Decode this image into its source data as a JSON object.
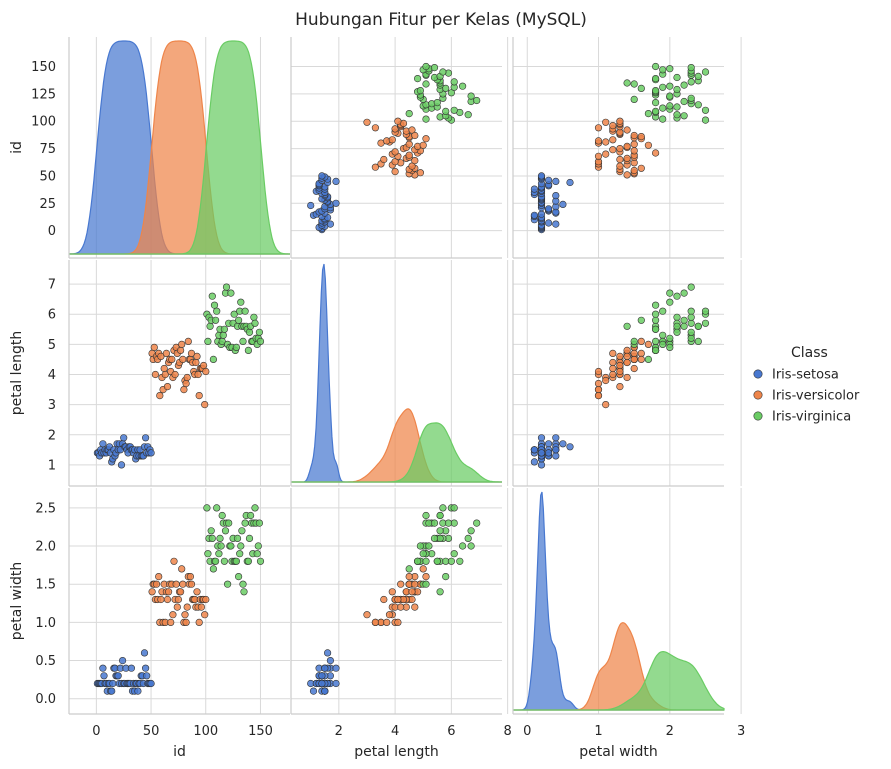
{
  "chart_data": {
    "type": "scatter",
    "title": "Hubungan Fitur per Kelas (MySQL)",
    "variables": [
      "id",
      "petal length",
      "petal width"
    ],
    "ticks": {
      "id": [
        0,
        50,
        100,
        150
      ],
      "id_y": [
        0,
        25,
        50,
        75,
        100,
        125,
        150
      ],
      "petal length_x": [
        2,
        4,
        6,
        8
      ],
      "petal length_y": [
        1,
        2,
        3,
        4,
        5,
        6,
        7
      ],
      "petal width_x": [
        0,
        1,
        2,
        3
      ],
      "petal width_y": [
        0.0,
        0.5,
        1.0,
        1.5,
        2.0,
        2.5
      ]
    },
    "ranges": {
      "id": [
        -25,
        177
      ],
      "petal length": [
        0.3,
        7.8
      ],
      "petal width": [
        -0.2,
        2.76
      ]
    },
    "grid": true,
    "legend": {
      "title": "Class",
      "placement": "right",
      "entries": [
        "Iris-setosa",
        "Iris-versicolor",
        "Iris-virginica"
      ]
    },
    "colors": {
      "Iris-setosa": "#4878d0",
      "Iris-versicolor": "#ee854a",
      "Iris-virginica": "#6acc64"
    },
    "series": [
      {
        "name": "Iris-setosa",
        "id": [
          1,
          2,
          3,
          4,
          5,
          6,
          7,
          8,
          9,
          10,
          11,
          12,
          13,
          14,
          15,
          16,
          17,
          18,
          19,
          20,
          21,
          22,
          23,
          24,
          25,
          26,
          27,
          28,
          29,
          30,
          31,
          32,
          33,
          34,
          35,
          36,
          37,
          38,
          39,
          40,
          41,
          42,
          43,
          44,
          45,
          46,
          47,
          48,
          49,
          50
        ],
        "petal length": [
          1.4,
          1.4,
          1.3,
          1.5,
          1.4,
          1.7,
          1.4,
          1.5,
          1.4,
          1.5,
          1.5,
          1.6,
          1.4,
          1.1,
          1.2,
          1.5,
          1.3,
          1.4,
          1.7,
          1.5,
          1.7,
          1.5,
          1.0,
          1.7,
          1.9,
          1.6,
          1.6,
          1.5,
          1.4,
          1.6,
          1.6,
          1.5,
          1.5,
          1.4,
          1.5,
          1.2,
          1.3,
          1.5,
          1.3,
          1.5,
          1.3,
          1.3,
          1.3,
          1.6,
          1.9,
          1.4,
          1.6,
          1.4,
          1.5,
          1.4
        ],
        "petal width": [
          0.2,
          0.2,
          0.2,
          0.2,
          0.2,
          0.4,
          0.3,
          0.2,
          0.2,
          0.1,
          0.2,
          0.2,
          0.1,
          0.1,
          0.2,
          0.4,
          0.4,
          0.3,
          0.3,
          0.3,
          0.2,
          0.4,
          0.2,
          0.5,
          0.2,
          0.2,
          0.4,
          0.2,
          0.2,
          0.2,
          0.2,
          0.4,
          0.1,
          0.2,
          0.1,
          0.2,
          0.2,
          0.1,
          0.2,
          0.2,
          0.3,
          0.3,
          0.2,
          0.6,
          0.4,
          0.3,
          0.2,
          0.2,
          0.2,
          0.2
        ]
      },
      {
        "name": "Iris-versicolor",
        "id": [
          51,
          52,
          53,
          54,
          55,
          56,
          57,
          58,
          59,
          60,
          61,
          62,
          63,
          64,
          65,
          66,
          67,
          68,
          69,
          70,
          71,
          72,
          73,
          74,
          75,
          76,
          77,
          78,
          79,
          80,
          81,
          82,
          83,
          84,
          85,
          86,
          87,
          88,
          89,
          90,
          91,
          92,
          93,
          94,
          95,
          96,
          97,
          98,
          99,
          100
        ],
        "petal length": [
          4.7,
          4.5,
          4.9,
          4.0,
          4.6,
          4.5,
          4.7,
          3.3,
          4.6,
          3.9,
          3.5,
          4.2,
          4.0,
          4.7,
          3.6,
          4.4,
          4.5,
          4.1,
          4.5,
          3.9,
          4.8,
          4.0,
          4.9,
          4.7,
          4.3,
          4.4,
          4.8,
          5.0,
          4.5,
          3.5,
          3.8,
          3.7,
          3.9,
          5.1,
          4.5,
          4.5,
          4.7,
          4.4,
          4.1,
          4.0,
          4.4,
          4.6,
          4.0,
          3.3,
          4.2,
          4.2,
          4.2,
          4.3,
          3.0,
          4.1
        ],
        "petal width": [
          1.4,
          1.5,
          1.5,
          1.3,
          1.5,
          1.3,
          1.6,
          1.0,
          1.3,
          1.4,
          1.0,
          1.5,
          1.0,
          1.4,
          1.3,
          1.4,
          1.5,
          1.0,
          1.5,
          1.1,
          1.8,
          1.3,
          1.5,
          1.2,
          1.3,
          1.4,
          1.4,
          1.7,
          1.5,
          1.0,
          1.1,
          1.0,
          1.2,
          1.6,
          1.5,
          1.6,
          1.5,
          1.3,
          1.3,
          1.3,
          1.2,
          1.4,
          1.2,
          1.0,
          1.3,
          1.2,
          1.3,
          1.3,
          1.1,
          1.3
        ]
      },
      {
        "name": "Iris-virginica",
        "id": [
          101,
          102,
          103,
          104,
          105,
          106,
          107,
          108,
          109,
          110,
          111,
          112,
          113,
          114,
          115,
          116,
          117,
          118,
          119,
          120,
          121,
          122,
          123,
          124,
          125,
          126,
          127,
          128,
          129,
          130,
          131,
          132,
          133,
          134,
          135,
          136,
          137,
          138,
          139,
          140,
          141,
          142,
          143,
          144,
          145,
          146,
          147,
          148,
          149,
          150
        ],
        "petal length": [
          6.0,
          5.1,
          5.9,
          5.6,
          5.8,
          6.6,
          4.5,
          6.3,
          5.8,
          6.1,
          5.1,
          5.3,
          5.5,
          5.0,
          5.1,
          5.3,
          5.5,
          6.7,
          6.9,
          5.0,
          5.7,
          4.9,
          6.7,
          4.9,
          5.7,
          6.0,
          4.8,
          4.9,
          5.6,
          5.8,
          6.1,
          6.4,
          5.6,
          5.1,
          5.6,
          6.1,
          5.6,
          5.5,
          4.8,
          5.4,
          5.6,
          5.1,
          5.1,
          5.9,
          5.7,
          5.2,
          5.0,
          5.2,
          5.4,
          5.1
        ],
        "petal width": [
          2.5,
          1.9,
          2.1,
          1.8,
          2.2,
          2.1,
          1.7,
          1.8,
          1.8,
          2.5,
          2.0,
          1.9,
          2.1,
          2.0,
          2.4,
          2.3,
          1.8,
          2.2,
          2.3,
          1.5,
          2.3,
          2.0,
          2.0,
          1.8,
          2.1,
          1.8,
          1.8,
          1.8,
          2.1,
          1.6,
          1.9,
          2.0,
          2.2,
          1.5,
          1.4,
          2.3,
          2.4,
          1.8,
          1.8,
          2.1,
          2.4,
          2.3,
          1.9,
          2.3,
          2.5,
          2.3,
          1.9,
          2.0,
          2.3,
          1.8
        ]
      }
    ]
  }
}
